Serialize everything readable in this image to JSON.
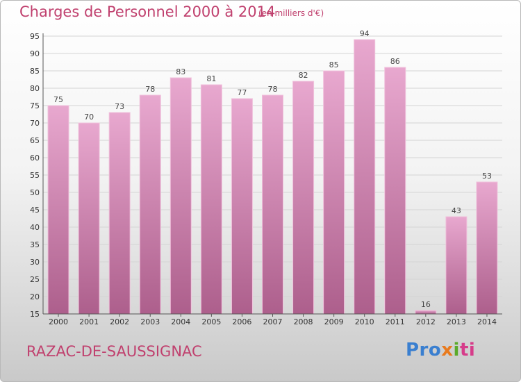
{
  "header": {
    "title": "Charges de Personnel 2000 à 2014",
    "subtitle": "(en milliers d'€)"
  },
  "footer": {
    "commune": "RAZAC-DE-SAUSSIGNAC",
    "logo": [
      "Pro",
      "x",
      "i",
      "ti"
    ]
  },
  "colors": {
    "title": "#c0406e",
    "bar_top": "#e8a8cf",
    "bar_bottom": "#ad5f8c",
    "bar_edge": "#f0c2dc",
    "gridline": "#d4d4d4"
  },
  "chart_data": {
    "type": "bar",
    "title": "Charges de Personnel 2000 à 2014",
    "subtitle": "(en milliers d'€)",
    "categories": [
      "2000",
      "2001",
      "2002",
      "2003",
      "2004",
      "2005",
      "2006",
      "2007",
      "2008",
      "2009",
      "2010",
      "2011",
      "2012",
      "2013",
      "2014"
    ],
    "values": [
      75,
      70,
      73,
      78,
      83,
      81,
      77,
      78,
      82,
      85,
      94,
      86,
      16,
      43,
      53
    ],
    "ylim": [
      15,
      95
    ],
    "yticks": [
      15,
      20,
      25,
      30,
      35,
      40,
      45,
      50,
      55,
      60,
      65,
      70,
      75,
      80,
      85,
      90,
      95
    ],
    "grid": true,
    "legend": "none"
  }
}
